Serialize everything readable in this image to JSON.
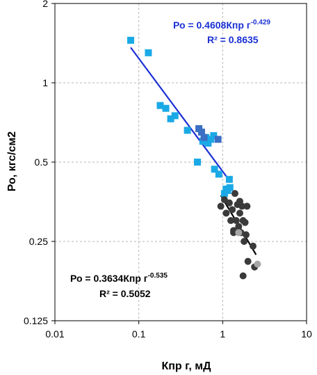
{
  "chart_data": {
    "type": "scatter",
    "title": "",
    "xlabel": "Кпр г, мД",
    "ylabel": "Ро, кгс/см2",
    "xscale": "log",
    "yscale": "log",
    "xlim": [
      0.01,
      10
    ],
    "ylim": [
      0.125,
      2
    ],
    "grid": true,
    "x_ticks": [
      "0.01",
      "0.1",
      "1",
      "10"
    ],
    "y_ticks": [
      "0.125",
      "0.25",
      "0.5",
      "1",
      "2"
    ],
    "series": [
      {
        "marker": "square",
        "color": "#1ba9e6",
        "points": [
          [
            0.08,
            1.45
          ],
          [
            0.13,
            1.3
          ],
          [
            0.18,
            0.82
          ],
          [
            0.21,
            0.8
          ],
          [
            0.24,
            0.73
          ],
          [
            0.27,
            0.75
          ],
          [
            0.38,
            0.66
          ],
          [
            0.5,
            0.5
          ],
          [
            0.58,
            0.6
          ],
          [
            0.63,
            0.62
          ],
          [
            0.67,
            0.59
          ],
          [
            0.72,
            0.61
          ],
          [
            0.78,
            0.63
          ],
          [
            0.8,
            0.47
          ],
          [
            0.9,
            0.45
          ],
          [
            1.05,
            0.38
          ],
          [
            1.1,
            0.395
          ],
          [
            1.15,
            0.39
          ],
          [
            1.2,
            0.43
          ],
          [
            1.22,
            0.4
          ]
        ]
      },
      {
        "marker": "square",
        "color": "#3b6fc4",
        "points": [
          [
            0.52,
            0.67
          ],
          [
            0.56,
            0.65
          ],
          [
            0.6,
            0.62
          ],
          [
            0.88,
            0.61
          ]
        ]
      },
      {
        "marker": "circle",
        "color": "#3a3a3a",
        "points": [
          [
            0.95,
            0.34
          ],
          [
            1.05,
            0.36
          ],
          [
            1.1,
            0.32
          ],
          [
            1.2,
            0.35
          ],
          [
            1.25,
            0.3
          ],
          [
            1.3,
            0.33
          ],
          [
            1.35,
            0.27
          ],
          [
            1.4,
            0.38
          ],
          [
            1.45,
            0.3
          ],
          [
            1.5,
            0.345
          ],
          [
            1.55,
            0.285
          ],
          [
            1.6,
            0.32
          ],
          [
            1.65,
            0.27
          ],
          [
            1.7,
            0.34
          ],
          [
            1.75,
            0.3
          ],
          [
            1.8,
            0.25
          ],
          [
            1.85,
            0.295
          ],
          [
            1.9,
            0.265
          ],
          [
            1.95,
            0.34
          ],
          [
            2.0,
            0.21
          ],
          [
            2.3,
            0.24
          ],
          [
            2.4,
            0.2
          ],
          [
            1.75,
            0.185
          ],
          [
            1.35,
            0.275
          ],
          [
            1.6,
            0.355
          ]
        ]
      },
      {
        "marker": "circle",
        "color": "#a6a6a6",
        "points": [
          [
            2.6,
            0.205
          ],
          [
            1.55,
            0.27
          ]
        ]
      }
    ],
    "trendlines": [
      {
        "color": "#1a2fd4",
        "equation": "Ро = 0.4608Кпр г",
        "exponent": "-0.429",
        "r2": "R² = 0.8635",
        "coef": 0.4608,
        "power": -0.429,
        "x_range": [
          0.08,
          1.22
        ]
      },
      {
        "color": "#000000",
        "equation": "Ро = 0.3634Кпр г",
        "exponent": "-0.535",
        "r2": "R² = 0.5052",
        "coef": 0.3634,
        "power": -0.535,
        "x_range": [
          0.95,
          2.5
        ]
      }
    ]
  }
}
